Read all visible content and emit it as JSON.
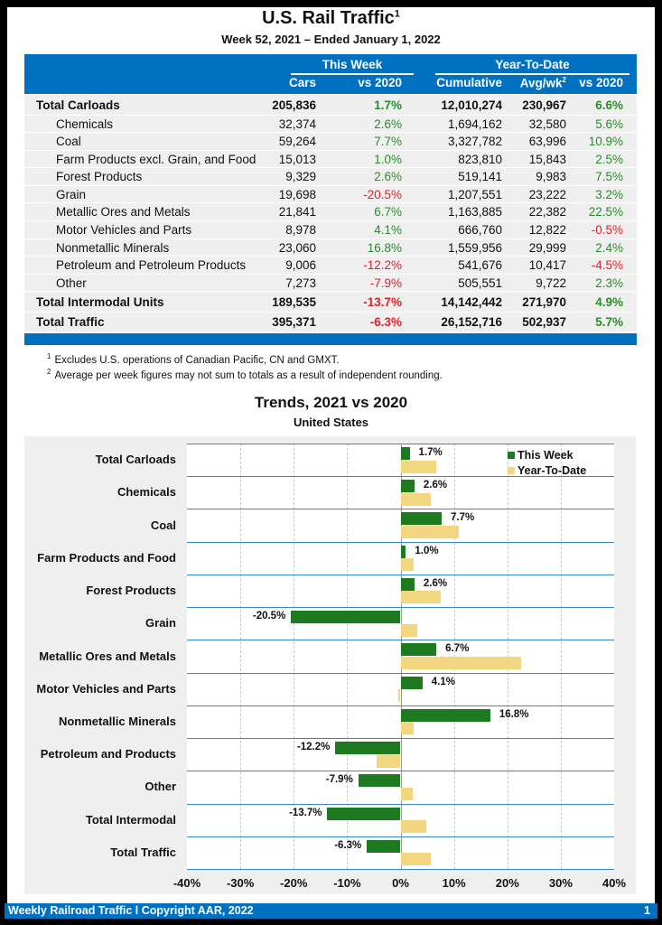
{
  "header": {
    "title": "U.S. Rail Traffic",
    "title_sup": "1",
    "subtitle": "Week 52, 2021 – Ended January 1, 2022"
  },
  "table": {
    "group_this_week": "This Week",
    "group_ytd": "Year-To-Date",
    "columns": [
      "Cars",
      "vs 2020",
      "Cumulative",
      "Avg/wk",
      "vs 2020"
    ],
    "avg_sup": "2",
    "rows": [
      {
        "label": "Total Carloads",
        "type": "total",
        "cars": "205,836",
        "vs": "1.7%",
        "cum": "12,010,274",
        "avg": "230,967",
        "ytd_vs": "6.6%"
      },
      {
        "label": "Chemicals",
        "type": "child",
        "cars": "32,374",
        "vs": "2.6%",
        "cum": "1,694,162",
        "avg": "32,580",
        "ytd_vs": "5.6%"
      },
      {
        "label": "Coal",
        "type": "child",
        "cars": "59,264",
        "vs": "7.7%",
        "cum": "3,327,782",
        "avg": "63,996",
        "ytd_vs": "10.9%"
      },
      {
        "label": "Farm Products excl. Grain, and Food",
        "type": "child",
        "cars": "15,013",
        "vs": "1.0%",
        "cum": "823,810",
        "avg": "15,843",
        "ytd_vs": "2.5%"
      },
      {
        "label": "Forest Products",
        "type": "child",
        "cars": "9,329",
        "vs": "2.6%",
        "cum": "519,141",
        "avg": "9,983",
        "ytd_vs": "7.5%"
      },
      {
        "label": "Grain",
        "type": "child",
        "cars": "19,698",
        "vs": "-20.5%",
        "cum": "1,207,551",
        "avg": "23,222",
        "ytd_vs": "3.2%"
      },
      {
        "label": "Metallic Ores and Metals",
        "type": "child",
        "cars": "21,841",
        "vs": "6.7%",
        "cum": "1,163,885",
        "avg": "22,382",
        "ytd_vs": "22.5%"
      },
      {
        "label": "Motor Vehicles and Parts",
        "type": "child",
        "cars": "8,978",
        "vs": "4.1%",
        "cum": "666,760",
        "avg": "12,822",
        "ytd_vs": "-0.5%"
      },
      {
        "label": "Nonmetallic Minerals",
        "type": "child",
        "cars": "23,060",
        "vs": "16.8%",
        "cum": "1,559,956",
        "avg": "29,999",
        "ytd_vs": "2.4%"
      },
      {
        "label": "Petroleum and Petroleum Products",
        "type": "child",
        "cars": "9,006",
        "vs": "-12.2%",
        "cum": "541,676",
        "avg": "10,417",
        "ytd_vs": "-4.5%"
      },
      {
        "label": "Other",
        "type": "child",
        "cars": "7,273",
        "vs": "-7.9%",
        "cum": "505,551",
        "avg": "9,722",
        "ytd_vs": "2.3%"
      },
      {
        "label": "Total Intermodal Units",
        "type": "total",
        "cars": "189,535",
        "vs": "-13.7%",
        "cum": "14,142,442",
        "avg": "271,970",
        "ytd_vs": "4.9%"
      },
      {
        "label": "Total Traffic",
        "type": "total",
        "cars": "395,371",
        "vs": "-6.3%",
        "cum": "26,152,716",
        "avg": "502,937",
        "ytd_vs": "5.7%"
      }
    ]
  },
  "footnotes": [
    {
      "mark": "1",
      "text": "Excludes U.S. operations of Canadian Pacific, CN and GMXT."
    },
    {
      "mark": "2",
      "text": "Average per week figures may not sum to totals as a result of independent rounding."
    }
  ],
  "chart_data": {
    "type": "bar",
    "orientation": "horizontal",
    "title": "Trends, 2021 vs 2020",
    "subtitle": "United States",
    "categories": [
      "Total Carloads",
      "Chemicals",
      "Coal",
      "Farm Products and Food",
      "Forest Products",
      "Grain",
      "Metallic Ores and Metals",
      "Motor Vehicles and Parts",
      "Nonmetallic Minerals",
      "Petroleum and Products",
      "Other",
      "Total Intermodal",
      "Total Traffic"
    ],
    "series": [
      {
        "name": "This Week",
        "color": "#1e7a1e",
        "values": [
          1.7,
          2.6,
          7.7,
          1.0,
          2.6,
          -20.5,
          6.7,
          4.1,
          16.8,
          -12.2,
          -7.9,
          -13.7,
          -6.3
        ],
        "data_labels": true
      },
      {
        "name": "Year-To-Date",
        "color": "#f2d680",
        "values": [
          6.6,
          5.6,
          10.9,
          2.5,
          7.5,
          3.2,
          22.5,
          -0.5,
          2.4,
          -4.5,
          2.3,
          4.9,
          5.7
        ],
        "data_labels": false
      }
    ],
    "xlim": [
      -40,
      40
    ],
    "xticks": [
      "-40%",
      "-30%",
      "-20%",
      "-10%",
      "0%",
      "10%",
      "20%",
      "30%",
      "40%"
    ],
    "grid": true,
    "legend": "top-right"
  },
  "footer": {
    "text": "Weekly Railroad Traffic l Copyright AAR, 2022",
    "page": "1"
  },
  "colors": {
    "brand_blue": "#0070c0",
    "positive": "#2a8c2a",
    "negative": "#e3202a"
  }
}
